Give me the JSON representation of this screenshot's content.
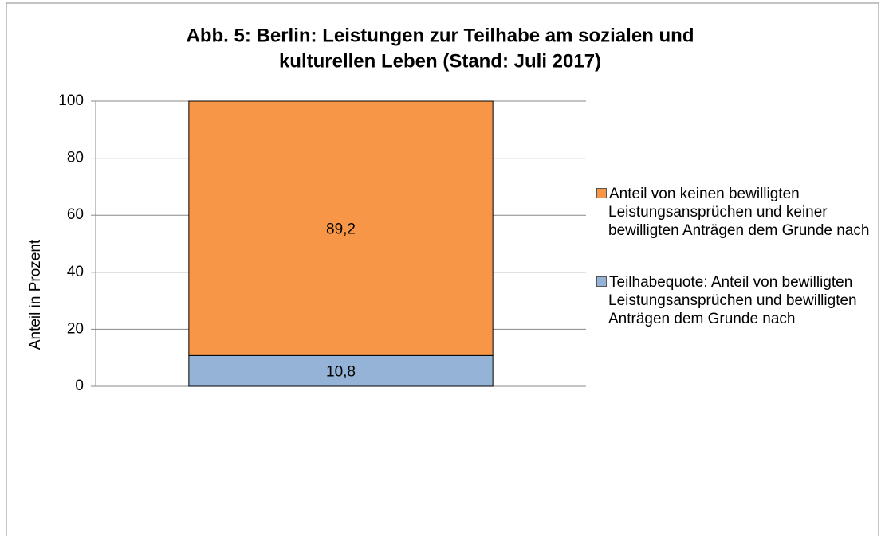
{
  "chart_data": {
    "type": "stacked_bar",
    "title": [
      "Abb. 5: Berlin: Leistungen zur Teilhabe am sozialen und",
      "kulturellen Leben (Stand: Juli 2017)"
    ],
    "y_label": "Anteil in Prozent",
    "categories": [
      null
    ],
    "series": [
      {
        "name": "Teilhabequote: Anteil von bewilligten Leistungsansprüchen und bewilligten Anträgen dem Grunde nach",
        "color": "#95b3d7",
        "values": [
          10.8
        ],
        "value_labels": [
          "10,8"
        ]
      },
      {
        "name": "Anteil von keinen bewilligten Leistungsansprüchen und keiner bewilligten Anträgen dem Grunde nach",
        "color": "#f79646",
        "values": [
          89.2
        ],
        "value_labels": [
          "89,2"
        ]
      }
    ],
    "ylim": [
      0,
      100
    ],
    "yticks": [
      0,
      20,
      40,
      60,
      80,
      100
    ],
    "grid": true,
    "legend": "right"
  }
}
